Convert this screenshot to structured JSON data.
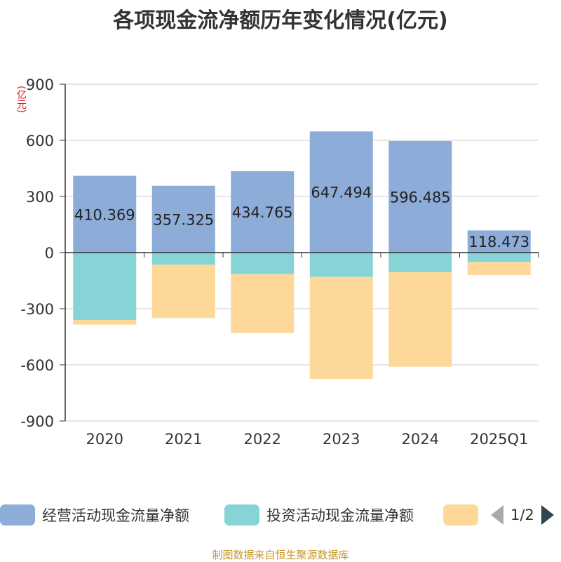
{
  "chart_data": {
    "type": "bar",
    "stacked": true,
    "title": "各项现金流净额历年变化情况(亿元)",
    "ylabel": "(亿元)",
    "categories": [
      "2020",
      "2021",
      "2022",
      "2023",
      "2024",
      "2025Q1"
    ],
    "ylim": [
      -900,
      900
    ],
    "yticks": [
      900,
      600,
      300,
      0,
      -300,
      -600,
      -900
    ],
    "grid": true,
    "legend_position": "bottom",
    "series": [
      {
        "name": "经营活动现金流量净额",
        "color": "#8eacd8",
        "values": [
          410.369,
          357.325,
          434.765,
          647.494,
          596.485,
          118.473
        ],
        "show_labels": true
      },
      {
        "name": "投资活动现金流量净额",
        "color": "#86d4d6",
        "values": [
          -360,
          -65,
          -115,
          -130,
          -105,
          -50
        ],
        "show_labels": false
      },
      {
        "name": "",
        "color": "#fdd898",
        "values": [
          -25,
          -285,
          -315,
          -545,
          -505,
          -70
        ],
        "show_labels": false
      }
    ]
  },
  "legend": {
    "page_label": "1/2"
  },
  "source": "制图数据来自恒生聚源数据库"
}
